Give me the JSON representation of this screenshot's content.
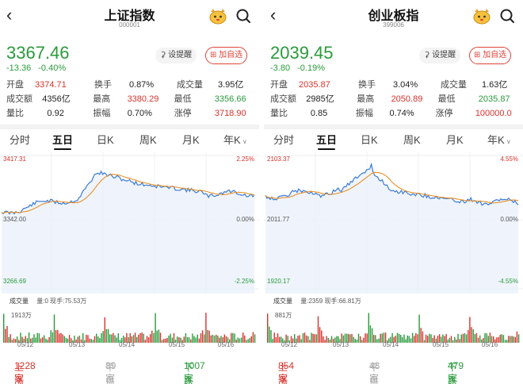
{
  "screens": [
    {
      "title": "上证指数",
      "code": "000001",
      "price": "3367.46",
      "change": "-13.36",
      "change_pct": "-0.40%",
      "remind_label": "设提醒",
      "add_label": "加自选",
      "stats": {
        "open_label": "开盘",
        "open": "3374.71",
        "turnover_label": "换手",
        "turnover": "0.87%",
        "volume_label": "成交量",
        "volume": "3.95亿",
        "amount_label": "成交额",
        "amount": "4356亿",
        "high_label": "最高",
        "high": "3380.29",
        "low_label": "最低",
        "low": "3356.66",
        "ratio_label": "量比",
        "ratio": "0.92",
        "amplitude_label": "振幅",
        "amplitude": "0.70%",
        "limit_label": "涨停",
        "limit": "3718.90"
      },
      "tabs": [
        "分时",
        "五日",
        "日K",
        "周K",
        "月K",
        "年K"
      ],
      "active_tab": "五日",
      "chart": {
        "top": "3417.31",
        "mid": "3342.00",
        "bottom": "3266.69",
        "top_pct": "2.25%",
        "mid_pct": "0.00%",
        "bottom_pct": "-2.25%"
      },
      "volume_label": "成交量",
      "volume_sub": "量:0 现手:75.53万",
      "volume_max": "1913万",
      "dates": [
        "05/12",
        "05/13",
        "05/14",
        "05/15",
        "05/16"
      ],
      "up_label": "上涨",
      "up": "1228家",
      "flat_label": "平盘",
      "flat": "89家",
      "down_label": "下跌",
      "down": "1007家"
    },
    {
      "title": "创业板指",
      "code": "399006",
      "price": "2039.45",
      "change": "-3.80",
      "change_pct": "-0.19%",
      "remind_label": "设提醒",
      "add_label": "加自选",
      "stats": {
        "open_label": "开盘",
        "open": "2035.87",
        "turnover_label": "换手",
        "turnover": "3.04%",
        "volume_label": "成交量",
        "volume": "1.63亿",
        "amount_label": "成交额",
        "amount": "2985亿",
        "high_label": "最高",
        "high": "2050.89",
        "low_label": "最低",
        "low": "2035.87",
        "ratio_label": "量比",
        "ratio": "0.85",
        "amplitude_label": "振幅",
        "amplitude": "0.74%",
        "limit_label": "涨停",
        "limit": "100000.0"
      },
      "tabs": [
        "分时",
        "五日",
        "日K",
        "周K",
        "月K",
        "年K"
      ],
      "active_tab": "五日",
      "chart": {
        "top": "2103.37",
        "mid": "2011.77",
        "bottom": "1920.17",
        "top_pct": "4.55%",
        "mid_pct": "0.00%",
        "bottom_pct": "-4.55%"
      },
      "volume_label": "成交量",
      "volume_sub": "量:2359 现手:66.81万",
      "volume_max": "881万",
      "dates": [
        "05/12",
        "05/13",
        "05/14",
        "05/15",
        "05/16"
      ],
      "up_label": "上涨",
      "up": "854家",
      "flat_label": "平盘",
      "flat": "48家",
      "down_label": "下跌",
      "down": "479家"
    }
  ],
  "colors": {
    "up": "#d8322b",
    "down": "#2a9a3c",
    "line": "#3a7bd5",
    "avg": "#e8902a"
  }
}
